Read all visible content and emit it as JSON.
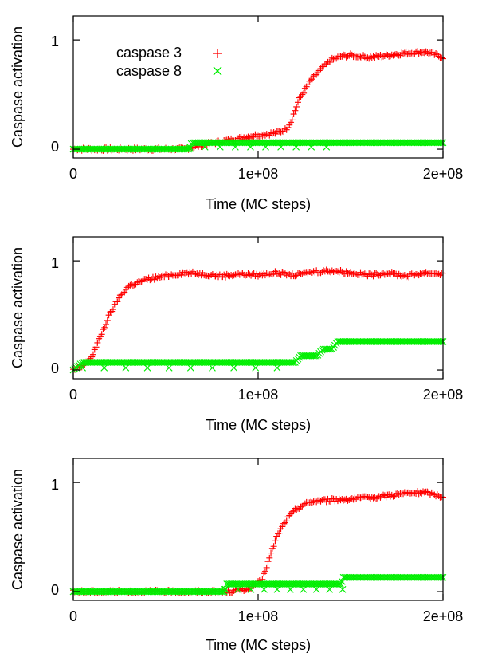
{
  "colors": {
    "caspase3": "#ff0000",
    "caspase8": "#00ee00",
    "axis": "#000000"
  },
  "legend": {
    "placement": "top-left",
    "entries": [
      {
        "label": "caspase 3",
        "marker": "plus",
        "color": "#ff0000"
      },
      {
        "label": "caspase 8",
        "marker": "cross",
        "color": "#00ee00"
      }
    ]
  },
  "chart_data": [
    {
      "type": "line",
      "xlabel": "Time (MC steps)",
      "ylabel": "Caspase activation",
      "xlim": [
        0,
        200000000
      ],
      "ylim": [
        -0.08,
        1.22
      ],
      "xticks": [
        {
          "value": 0,
          "label": "0"
        },
        {
          "value": 100000000,
          "label": "1e+08"
        },
        {
          "value": 200000000,
          "label": "2e+08"
        }
      ],
      "yticks": [
        {
          "value": 0,
          "label": "0"
        },
        {
          "value": 1,
          "label": "1"
        }
      ],
      "grid": false,
      "series": [
        {
          "name": "caspase 3",
          "marker": "plus",
          "color": "#ff0000",
          "x": [
            0,
            60000000,
            65000000,
            70000000,
            80000000,
            90000000,
            100000000,
            110000000,
            115000000,
            118000000,
            122000000,
            128000000,
            135000000,
            140000000,
            145000000,
            150000000,
            160000000,
            170000000,
            180000000,
            190000000,
            195000000,
            200000000
          ],
          "y": [
            0.0,
            0.0,
            0.02,
            0.04,
            0.07,
            0.1,
            0.13,
            0.15,
            0.18,
            0.26,
            0.45,
            0.62,
            0.75,
            0.82,
            0.85,
            0.86,
            0.84,
            0.86,
            0.88,
            0.89,
            0.87,
            0.84
          ]
        },
        {
          "name": "caspase 8",
          "marker": "cross",
          "color": "#00ee00",
          "x": [
            0,
            63000000,
            64000000,
            120000000,
            121000000,
            160000000,
            200000000
          ],
          "y": [
            0.0,
            0.0,
            0.06,
            0.06,
            0.06,
            0.06,
            0.06
          ]
        }
      ]
    },
    {
      "type": "line",
      "xlabel": "Time (MC steps)",
      "ylabel": "Caspase activation",
      "xlim": [
        0,
        200000000
      ],
      "ylim": [
        -0.08,
        1.22
      ],
      "xticks": [
        {
          "value": 0,
          "label": "0"
        },
        {
          "value": 100000000,
          "label": "1e+08"
        },
        {
          "value": 200000000,
          "label": "2e+08"
        }
      ],
      "yticks": [
        {
          "value": 0,
          "label": "0"
        },
        {
          "value": 1,
          "label": "1"
        }
      ],
      "grid": false,
      "series": [
        {
          "name": "caspase 3",
          "marker": "plus",
          "color": "#ff0000",
          "x": [
            0,
            5000000,
            10000000,
            15000000,
            20000000,
            25000000,
            30000000,
            35000000,
            40000000,
            50000000,
            60000000,
            70000000,
            80000000,
            90000000,
            100000000,
            110000000,
            120000000,
            130000000,
            140000000,
            150000000,
            160000000,
            170000000,
            180000000,
            190000000,
            200000000
          ],
          "y": [
            0.0,
            0.03,
            0.12,
            0.32,
            0.52,
            0.67,
            0.77,
            0.8,
            0.83,
            0.86,
            0.89,
            0.88,
            0.86,
            0.88,
            0.87,
            0.89,
            0.87,
            0.9,
            0.91,
            0.89,
            0.87,
            0.89,
            0.86,
            0.89,
            0.88
          ]
        },
        {
          "name": "caspase 8",
          "marker": "cross",
          "color": "#00ee00",
          "x": [
            0,
            5000000,
            120000000,
            123000000,
            132000000,
            135000000,
            140000000,
            143000000,
            200000000
          ],
          "y": [
            0.0,
            0.07,
            0.07,
            0.13,
            0.13,
            0.19,
            0.19,
            0.26,
            0.26
          ]
        }
      ]
    },
    {
      "type": "line",
      "xlabel": "Time (MC steps)",
      "ylabel": "Caspase activation",
      "xlim": [
        0,
        200000000
      ],
      "ylim": [
        -0.08,
        1.22
      ],
      "xticks": [
        {
          "value": 0,
          "label": "0"
        },
        {
          "value": 100000000,
          "label": "1e+08"
        },
        {
          "value": 200000000,
          "label": "2e+08"
        }
      ],
      "yticks": [
        {
          "value": 0,
          "label": "0"
        },
        {
          "value": 1,
          "label": "1"
        }
      ],
      "grid": false,
      "series": [
        {
          "name": "caspase 3",
          "marker": "plus",
          "color": "#ff0000",
          "x": [
            0,
            85000000,
            95000000,
            102000000,
            106000000,
            110000000,
            115000000,
            120000000,
            125000000,
            130000000,
            140000000,
            150000000,
            160000000,
            170000000,
            180000000,
            190000000,
            200000000
          ],
          "y": [
            0.0,
            0.0,
            0.03,
            0.1,
            0.3,
            0.5,
            0.65,
            0.75,
            0.8,
            0.83,
            0.84,
            0.85,
            0.86,
            0.88,
            0.9,
            0.91,
            0.87
          ]
        },
        {
          "name": "caspase 8",
          "marker": "cross",
          "color": "#00ee00",
          "x": [
            0,
            82000000,
            83000000,
            145000000,
            146000000,
            200000000
          ],
          "y": [
            0.0,
            0.0,
            0.07,
            0.07,
            0.13,
            0.13
          ]
        }
      ]
    }
  ]
}
